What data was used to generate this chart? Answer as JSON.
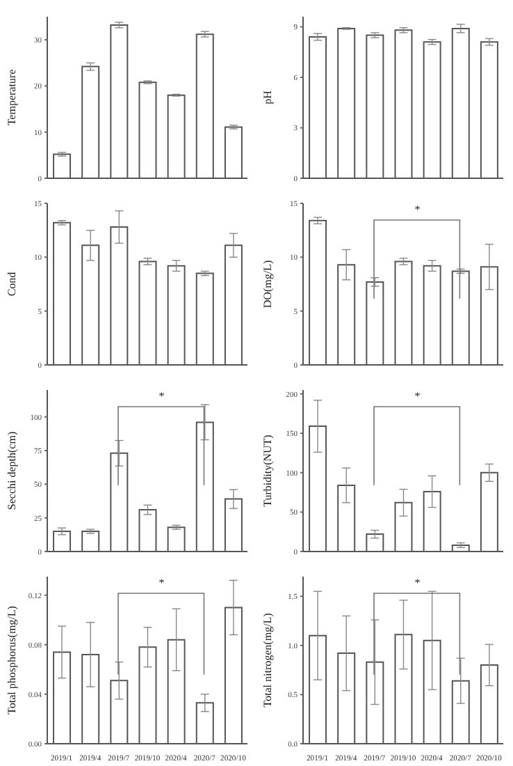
{
  "chart_data": [
    {
      "type": "bar",
      "ylabel": "Temperature",
      "categories": [
        "2019/1",
        "2019/4",
        "2019/7",
        "2019/10",
        "2020/4",
        "2020/7",
        "2020/10"
      ],
      "values": [
        5.2,
        24.2,
        33.2,
        20.8,
        18,
        31.2,
        11.1
      ],
      "errors": [
        0.4,
        0.8,
        0.6,
        0.3,
        0.2,
        0.6,
        0.4
      ],
      "color": "#ffffff",
      "ylim": [
        0,
        35
      ],
      "yticks": [
        0,
        10,
        20,
        30
      ],
      "tick_labels": "y"
    },
    {
      "type": "bar",
      "ylabel": "pH",
      "categories": [
        "2019/1",
        "2019/4",
        "2019/7",
        "2019/10",
        "2020/4",
        "2020/7",
        "2020/10"
      ],
      "values": [
        8.4,
        8.9,
        8.5,
        8.8,
        8.1,
        8.9,
        8.1
      ],
      "errors": [
        0.2,
        0.05,
        0.15,
        0.15,
        0.15,
        0.25,
        0.2
      ],
      "color": "#ffffff",
      "ylim": [
        0,
        9.6
      ],
      "yticks": [
        0,
        3,
        6,
        9
      ],
      "tick_labels": "y"
    },
    {
      "type": "bar",
      "ylabel": "Cond",
      "categories": [
        "2019/1",
        "2019/4",
        "2019/7",
        "2019/10",
        "2020/4",
        "2020/7",
        "2020/10"
      ],
      "values": [
        13.2,
        11.1,
        12.8,
        9.6,
        9.2,
        8.5,
        11.1
      ],
      "errors": [
        0.2,
        1.4,
        1.5,
        0.3,
        0.5,
        0.2,
        1.1
      ],
      "color": "#ffffff",
      "ylim": [
        0,
        15
      ],
      "yticks": [
        0,
        5,
        10,
        15
      ],
      "tick_labels": "y"
    },
    {
      "type": "bar",
      "ylabel": "DO(mg/L)",
      "categories": [
        "2019/1",
        "2019/4",
        "2019/7",
        "2019/10",
        "2020/4",
        "2020/7",
        "2020/10"
      ],
      "values": [
        13.4,
        9.3,
        7.7,
        9.6,
        9.2,
        8.7,
        9.1
      ],
      "errors": [
        0.3,
        1.4,
        0.4,
        0.3,
        0.5,
        0.2,
        2.1
      ],
      "color": "#ffffff",
      "ylim": [
        0,
        15
      ],
      "yticks": [
        0,
        5,
        10,
        15
      ],
      "tick_labels": "y",
      "annotations": [
        "*"
      ]
    },
    {
      "type": "bar",
      "ylabel": "Secchi depth(cm)",
      "categories": [
        "2019/1",
        "2019/4",
        "2019/7",
        "2019/10",
        "2020/4",
        "2020/7",
        "2020/10"
      ],
      "values": [
        15,
        15,
        73,
        31,
        18,
        96,
        39
      ],
      "errors": [
        2.5,
        1.5,
        9.5,
        3.5,
        1.5,
        13,
        7
      ],
      "color": "#ffffff",
      "ylim": [
        0,
        120
      ],
      "yticks": [
        0,
        25,
        50,
        75,
        100
      ],
      "tick_labels": "y",
      "annotations": [
        "*"
      ]
    },
    {
      "type": "bar",
      "ylabel": "Turbidity(NUT)",
      "categories": [
        "2019/1",
        "2019/4",
        "2019/7",
        "2019/10",
        "2020/4",
        "2020/7",
        "2020/10"
      ],
      "values": [
        159,
        84,
        22,
        62,
        76,
        8,
        100
      ],
      "errors": [
        33,
        22,
        5,
        17,
        20,
        3,
        11
      ],
      "color": "#ffffff",
      "ylim": [
        0,
        205
      ],
      "yticks": [
        0,
        50,
        100,
        150,
        200
      ],
      "tick_labels": "y",
      "annotations": [
        "*"
      ]
    },
    {
      "type": "bar",
      "ylabel": "Total phosphorus(mg/L)",
      "categories": [
        "2019/1",
        "2019/4",
        "2019/7",
        "2019/10",
        "2020/4",
        "2020/7",
        "2020/10"
      ],
      "values": [
        0.074,
        0.072,
        0.051,
        0.078,
        0.084,
        0.033,
        0.11
      ],
      "errors": [
        0.021,
        0.026,
        0.015,
        0.016,
        0.025,
        0.007,
        0.022
      ],
      "color": "#ffffff",
      "ylim": [
        0,
        0.135
      ],
      "yticks": [
        {
          "value": 0,
          "label": "0.00"
        },
        {
          "value": 0.04,
          "label": "0.04"
        },
        {
          "value": 0.08,
          "label": "0.08"
        },
        {
          "value": 0.12,
          "label": "0.12"
        }
      ],
      "annotations": [
        "*"
      ]
    },
    {
      "type": "bar",
      "ylabel": "Total nitrogen(mg/L)",
      "categories": [
        "2019/1",
        "2019/4",
        "2019/7",
        "2019/10",
        "2020/4",
        "2020/7",
        "2020/10"
      ],
      "values": [
        1.1,
        0.92,
        0.83,
        1.11,
        1.05,
        0.64,
        0.8
      ],
      "errors": [
        0.45,
        0.38,
        0.43,
        0.35,
        0.5,
        0.23,
        0.21
      ],
      "color": "#ffffff",
      "ylim": [
        0,
        1.7
      ],
      "yticks": [
        {
          "value": 0,
          "label": "0.0"
        },
        {
          "value": 0.5,
          "label": "0.5"
        },
        {
          "value": 1,
          "label": "1.0"
        },
        {
          "value": 1.5,
          "label": "1.5"
        }
      ],
      "annotations": [
        "*"
      ]
    }
  ]
}
